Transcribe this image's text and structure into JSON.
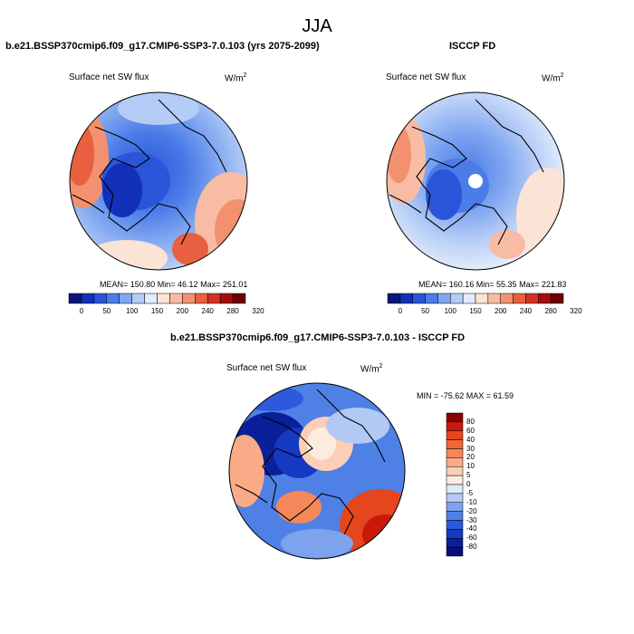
{
  "title": "JJA",
  "panels": [
    {
      "title": "b.e21.BSSP370cmip6.f09_g17.CMIP6-SSP3-7.0.103 (yrs 2075-2099)",
      "variable": "Surface net SW flux",
      "units": "W/m",
      "units_sup": "2",
      "stats": "MEAN= 150.80  Min=  46.12  Max= 251.01"
    },
    {
      "title": "ISCCP FD",
      "variable": "Surface net SW flux",
      "units": "W/m",
      "units_sup": "2",
      "stats": "MEAN= 160.16  Min=  55.35  Max= 221.83"
    },
    {
      "title": "b.e21.BSSP370cmip6.f09_g17.CMIP6-SSP3-7.0.103 - ISCCP FD",
      "variable": "Surface net SW flux",
      "units": "W/m",
      "units_sup": "2",
      "stats": "MIN = -75.62 MAX =  61.59"
    }
  ],
  "colorbar_h": {
    "labels": [
      "0",
      "50",
      "100",
      "150",
      "200",
      "240",
      "280",
      "320"
    ],
    "colors": [
      "#08157a",
      "#1230b8",
      "#2a55d8",
      "#4b7ce8",
      "#7fa6f0",
      "#b4ccf6",
      "#e0ebfb",
      "#fbe3d6",
      "#f8bca4",
      "#f29070",
      "#e8603f",
      "#d23222",
      "#a50d0d",
      "#6b0000"
    ]
  },
  "colorbar_v": {
    "labels": [
      "80",
      "60",
      "40",
      "30",
      "20",
      "10",
      "5",
      "0",
      "-5",
      "-10",
      "-20",
      "-30",
      "-40",
      "-60",
      "-80"
    ],
    "colors": [
      "#8a0000",
      "#c81a0a",
      "#e5461e",
      "#f06638",
      "#f5885a",
      "#f8ab86",
      "#fbcfb6",
      "#fdebe0",
      "#dfe9fb",
      "#b2c9f4",
      "#7da3ee",
      "#4f80e6",
      "#2d5adc",
      "#1639c2",
      "#0a1f98",
      "#061078"
    ]
  },
  "colors": {
    "land_outline": "#000000"
  }
}
